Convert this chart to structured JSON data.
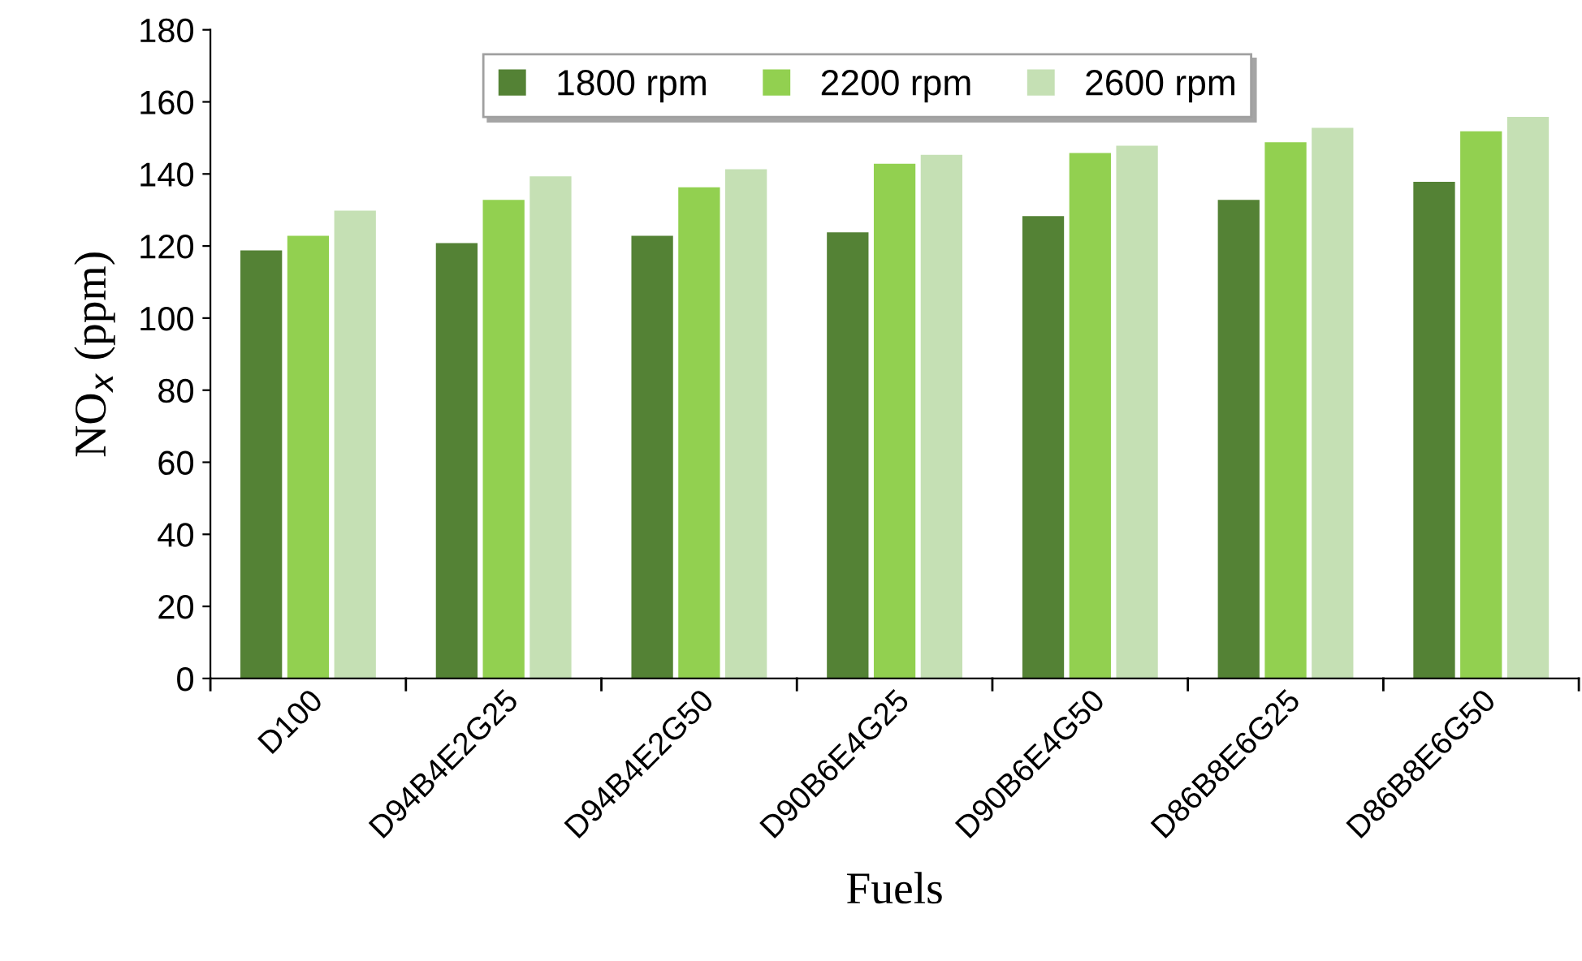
{
  "chart_data": {
    "type": "bar",
    "xlabel": "Fuels",
    "ylabel": "NO$_{x}$ (ppm)",
    "categories": [
      "D100",
      "D94B4E2G25",
      "D94B4E2G50",
      "D90B6E4G25",
      "D90B6E4G50",
      "D86B8E6G25",
      "D86B8E6G50"
    ],
    "series": [
      {
        "name": "1800 rpm",
        "color": "#548235",
        "values": [
          119,
          121,
          123,
          124,
          128.5,
          133,
          138
        ]
      },
      {
        "name": "2200 rpm",
        "color": "#92d050",
        "values": [
          123,
          133,
          136.5,
          143,
          146,
          149,
          152
        ]
      },
      {
        "name": "2600 rpm",
        "color": "#c5e0b4",
        "values": [
          130,
          139.5,
          141.5,
          145.5,
          148,
          153,
          156
        ]
      }
    ],
    "ylim": [
      0,
      180
    ],
    "yticks": [
      0,
      20,
      40,
      60,
      80,
      100,
      120,
      140,
      160,
      180
    ],
    "grid": false,
    "legend": "top"
  }
}
